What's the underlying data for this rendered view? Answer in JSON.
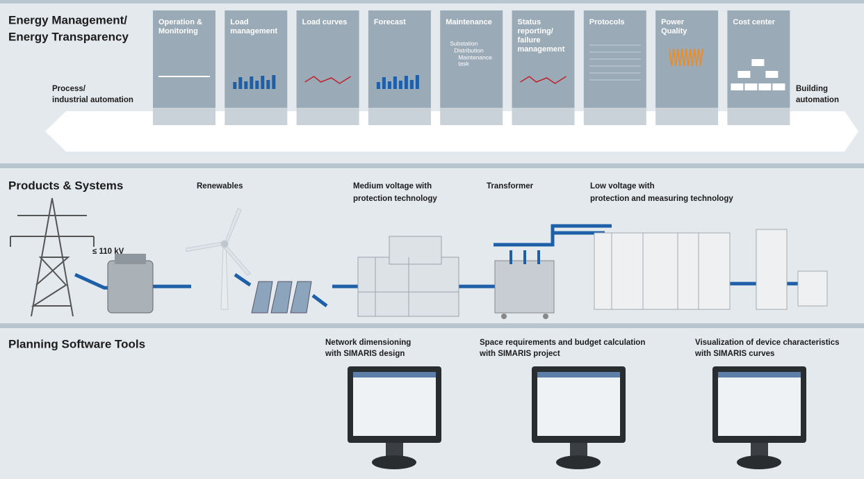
{
  "energy_management": {
    "title": [
      "Energy Management/",
      "Energy Transparency"
    ],
    "left_label": [
      "Process/",
      "industrial automation"
    ],
    "right_label": [
      "Building",
      "automation"
    ],
    "cards": [
      {
        "label": [
          "Operation &",
          "Monitoring"
        ]
      },
      {
        "label": [
          "Load",
          "management"
        ]
      },
      {
        "label": [
          "Load curves"
        ]
      },
      {
        "label": [
          "Forecast"
        ]
      },
      {
        "label": [
          "Maintenance"
        ]
      },
      {
        "label": [
          "Status",
          "reporting/",
          "failure",
          "management"
        ]
      },
      {
        "label": [
          "Protocols"
        ]
      },
      {
        "label": [
          "Power",
          "Quality"
        ]
      },
      {
        "label": [
          "Cost center"
        ]
      }
    ],
    "maintenance_items": [
      [
        "Substation"
      ],
      [
        "Distribution"
      ],
      [
        "Maintenance",
        "task"
      ]
    ]
  },
  "products": {
    "title": "Products & Systems",
    "voltage": "≤ 110 kV",
    "items": [
      {
        "label": [
          "Renewables"
        ]
      },
      {
        "label": [
          "Medium voltage with",
          "protection technology"
        ]
      },
      {
        "label": [
          "Transformer"
        ]
      },
      {
        "label": [
          "Low voltage with",
          "protection and measuring technology"
        ]
      }
    ]
  },
  "planning": {
    "title": "Planning Software Tools",
    "tools": [
      {
        "label": [
          "Network dimensioning",
          "with SIMARIS design"
        ]
      },
      {
        "label": [
          "Space requirements and budget calculation",
          "with SIMARIS project"
        ]
      },
      {
        "label": [
          "Visualization of device characteristics",
          "with SIMARIS curves"
        ]
      }
    ]
  }
}
